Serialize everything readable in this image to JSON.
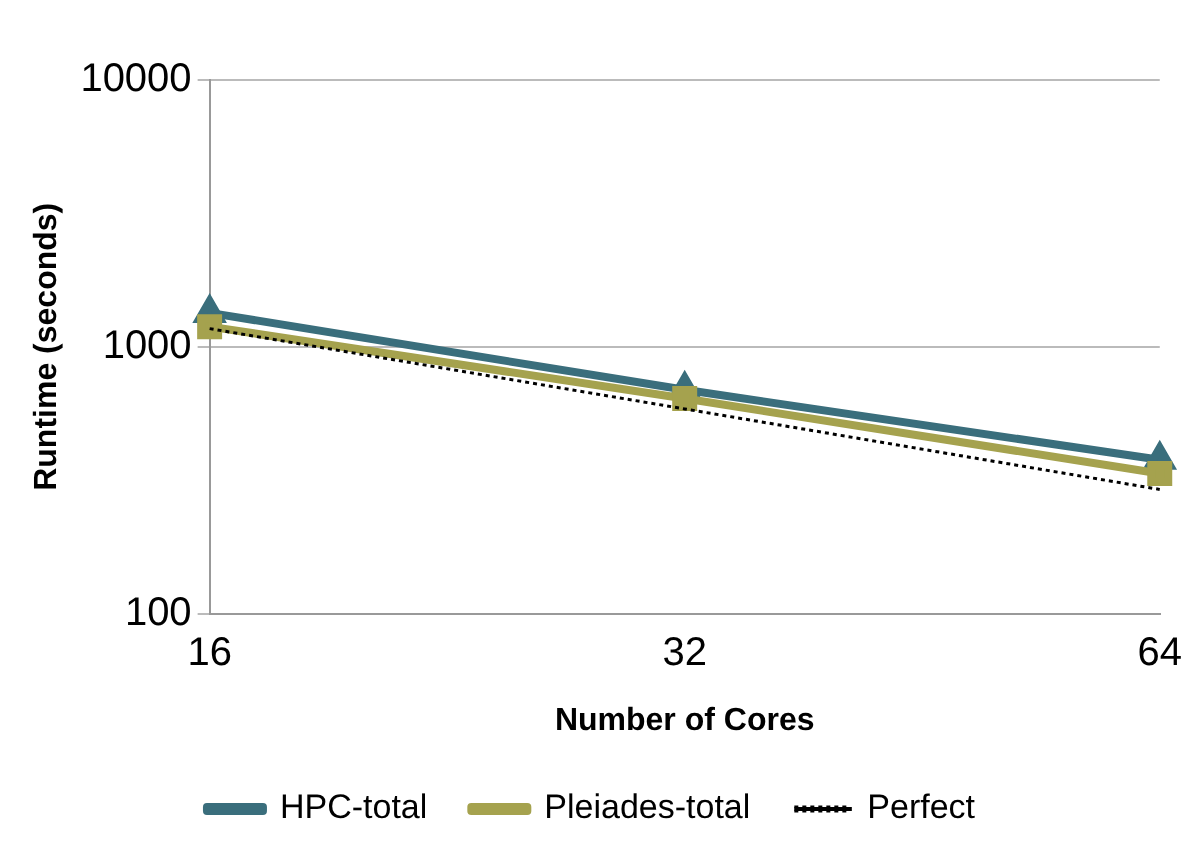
{
  "chart_data": {
    "type": "line",
    "xlabel": "Number of Cores",
    "ylabel": "Runtime (seconds)",
    "categories": [
      "16",
      "32",
      "64"
    ],
    "series": [
      {
        "name": "HPC-total",
        "color": "#3a6e7c",
        "marker": "triangle",
        "line_style": "solid",
        "values": [
          1340,
          690,
          377
        ]
      },
      {
        "name": "Pleiades-total",
        "color": "#a5a24e",
        "marker": "square",
        "line_style": "solid",
        "values": [
          1190,
          640,
          335
        ]
      },
      {
        "name": "Perfect",
        "color": "#000000",
        "marker": "none",
        "line_style": "dotted",
        "values": [
          1170,
          585,
          292
        ]
      }
    ],
    "log": "y",
    "ylim": [
      100,
      10000
    ],
    "yticks": [
      100,
      1000,
      10000
    ],
    "grid": "y",
    "legend": "bottom"
  }
}
